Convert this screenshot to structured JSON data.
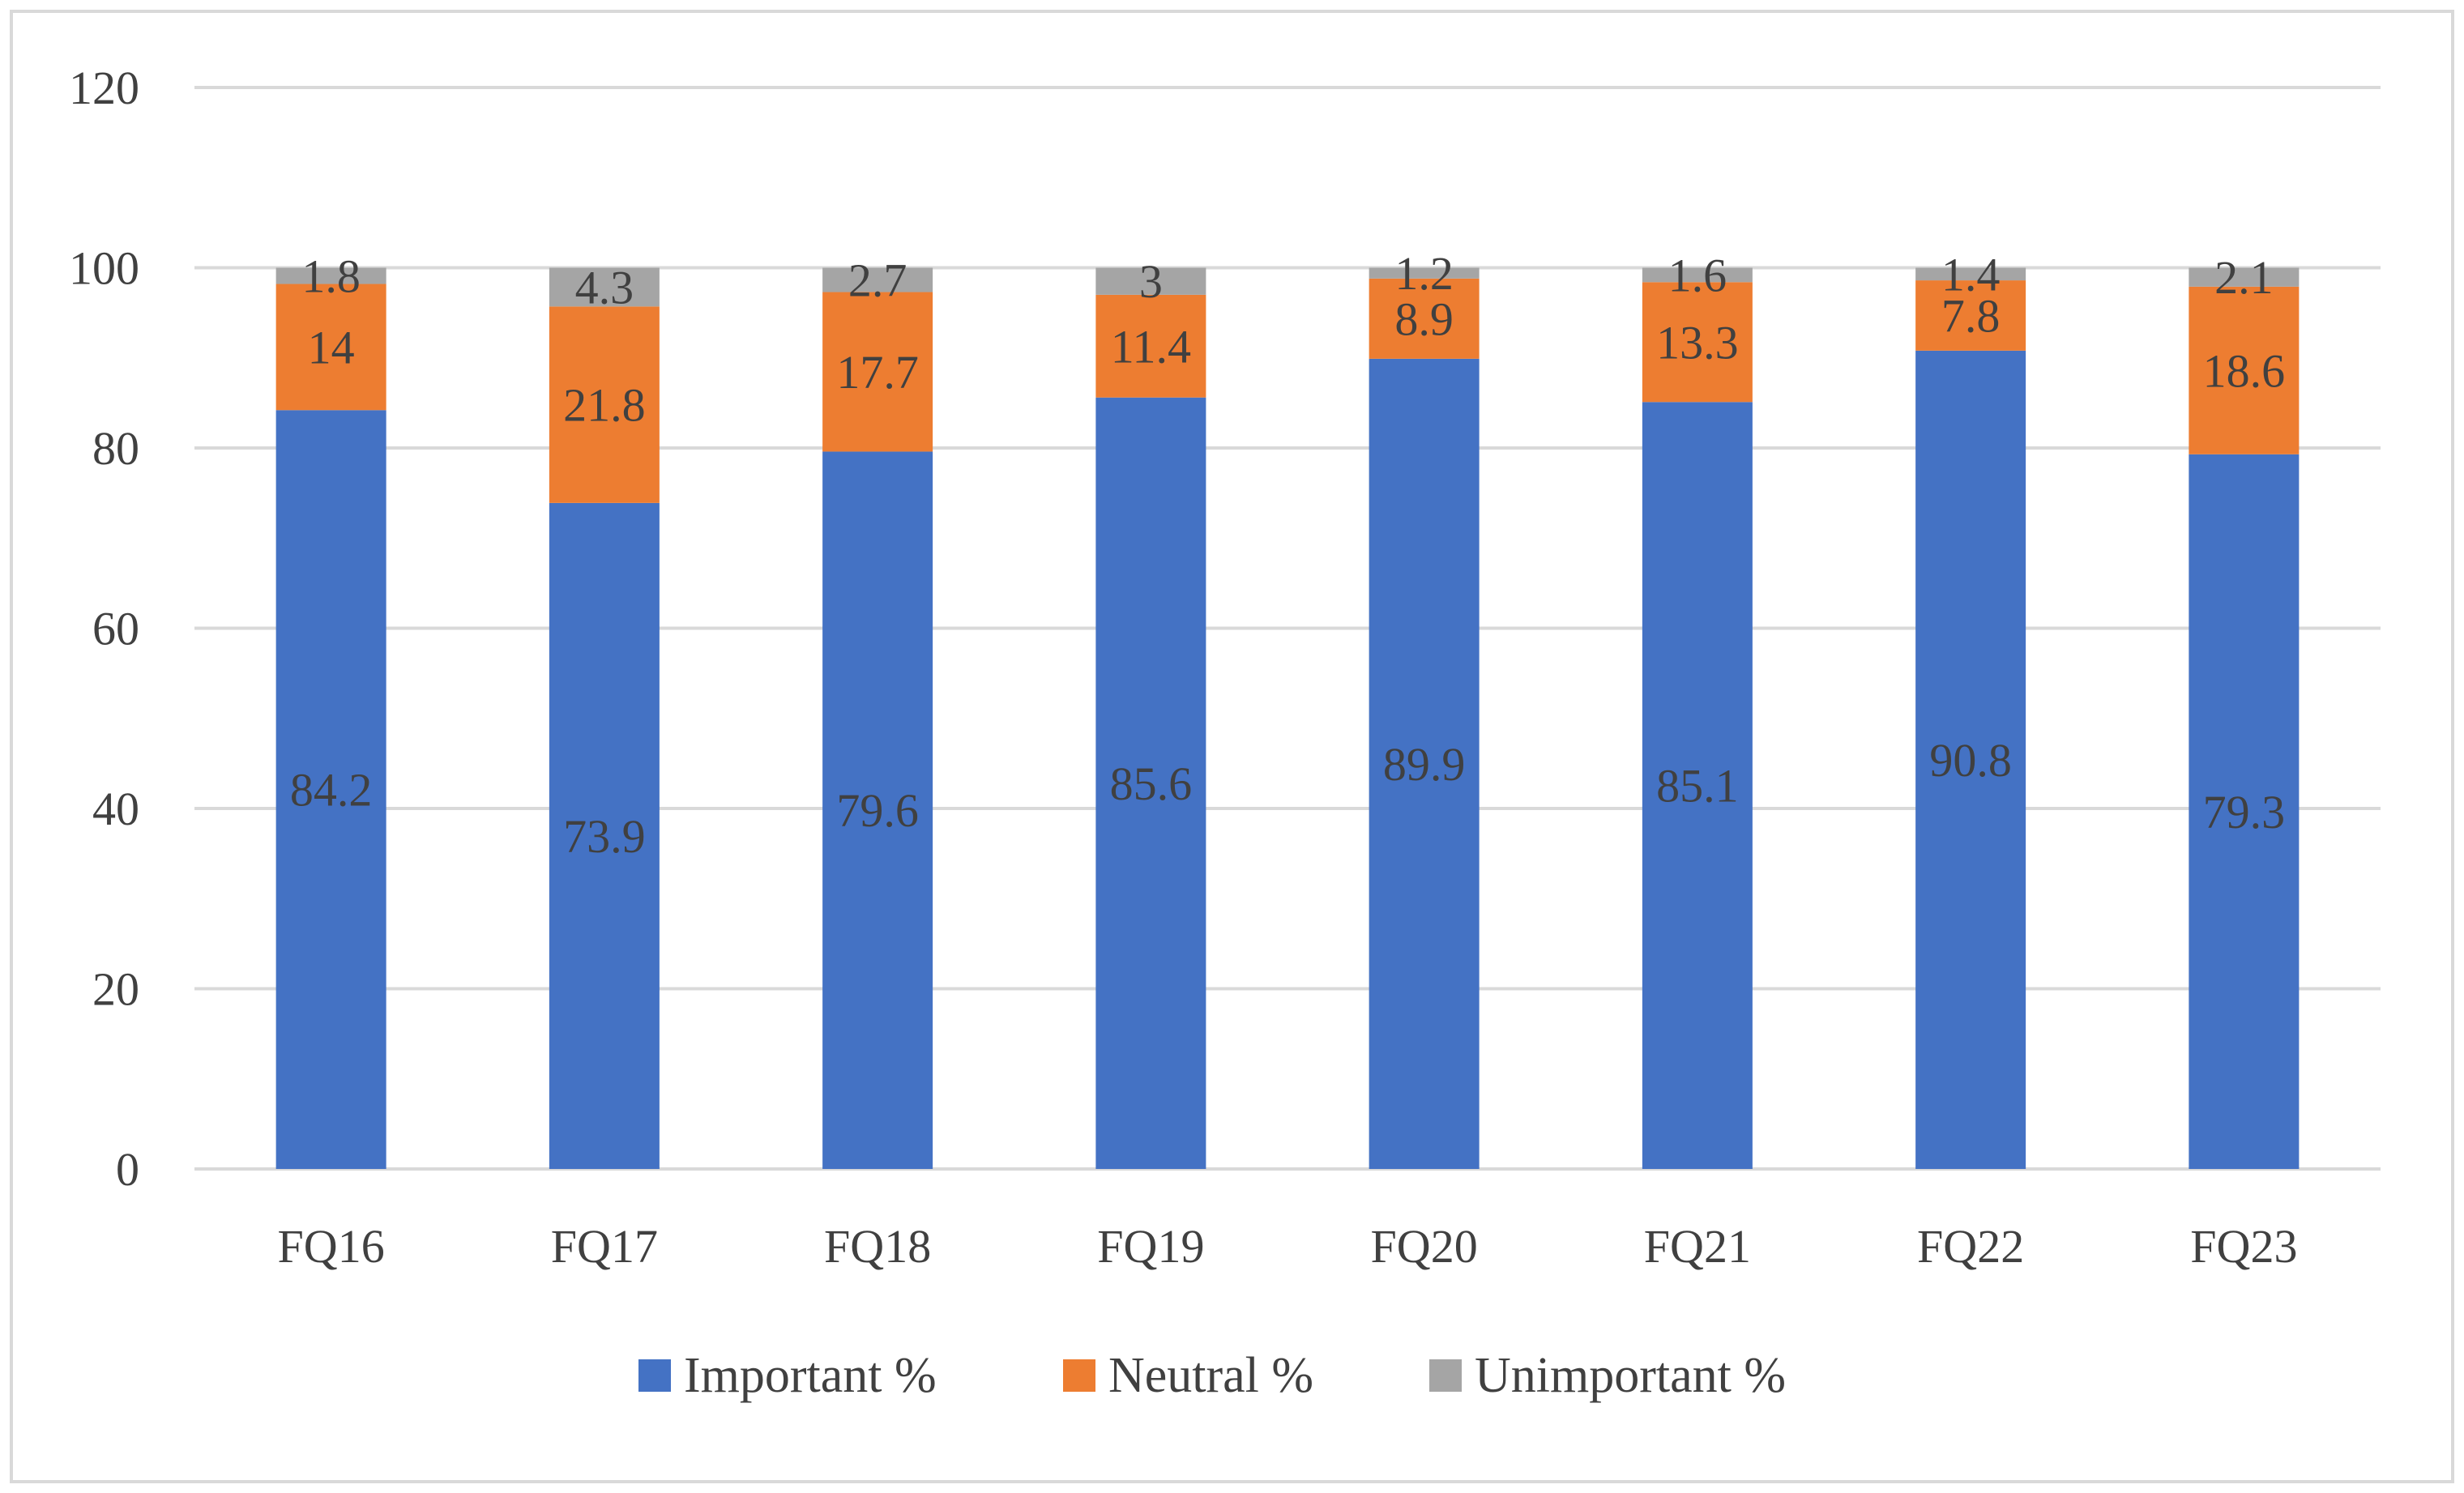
{
  "chart_data": {
    "type": "bar",
    "stacked": true,
    "categories": [
      "FQ16",
      "FQ17",
      "FQ18",
      "FQ19",
      "FQ20",
      "FQ21",
      "FQ22",
      "FQ23"
    ],
    "series": [
      {
        "name": "Important %",
        "color": "#4472c4",
        "values": [
          84.2,
          73.9,
          79.6,
          85.6,
          89.9,
          85.1,
          90.8,
          79.3
        ]
      },
      {
        "name": "Neutral %",
        "color": "#ed7d31",
        "values": [
          14,
          21.8,
          17.7,
          11.4,
          8.9,
          13.3,
          7.8,
          18.6
        ]
      },
      {
        "name": "Unimportant %",
        "color": "#a5a5a5",
        "values": [
          1.8,
          4.3,
          2.7,
          3,
          1.2,
          1.6,
          1.4,
          2.1
        ]
      }
    ],
    "ylim": [
      0,
      120
    ],
    "yticks": [
      0,
      20,
      40,
      60,
      80,
      100,
      120
    ],
    "grid": true,
    "gridline_color": "#d9d9d9",
    "text_color": "#404040",
    "legend_position": "bottom",
    "title": "",
    "xlabel": "",
    "ylabel": ""
  }
}
